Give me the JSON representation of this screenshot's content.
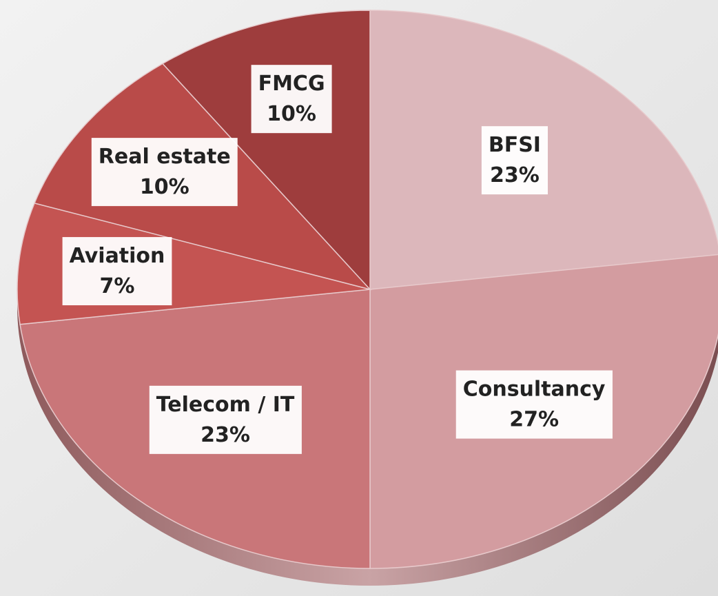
{
  "chart_data": {
    "type": "pie",
    "categories": [
      "BFSI",
      "Consultancy",
      "Telecom / IT",
      "Aviation",
      "Real estate",
      "FMCG"
    ],
    "values": [
      23,
      27,
      23,
      7,
      10,
      10
    ],
    "value_labels": [
      "23%",
      "27%",
      "23%",
      "7%",
      "10%",
      "10%"
    ],
    "colors": [
      "#dcb7bb",
      "#d39ca0",
      "#c97679",
      "#c45452",
      "#b94b49",
      "#9e3d3d"
    ]
  }
}
